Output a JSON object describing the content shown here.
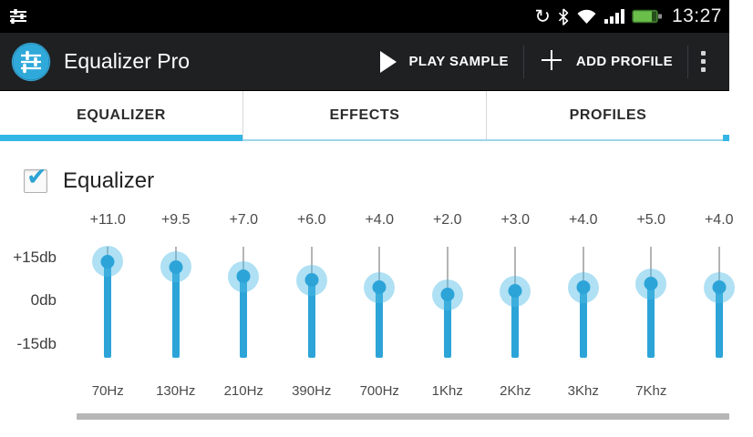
{
  "status_bar": {
    "time": "13:27",
    "icons": [
      "equalizer-notification-icon",
      "sync-icon",
      "bluetooth-icon",
      "wifi-icon",
      "signal-strength-icon",
      "battery-icon"
    ]
  },
  "action_bar": {
    "title": "Equalizer Pro",
    "actions": {
      "play_sample": "PLAY SAMPLE",
      "add_profile": "ADD PROFILE"
    }
  },
  "tabs": [
    {
      "label": "EQUALIZER",
      "active": true
    },
    {
      "label": "EFFECTS",
      "active": false
    },
    {
      "label": "PROFILES",
      "active": false
    }
  ],
  "equalizer": {
    "enabled_checkbox_label": "Equalizer",
    "enabled": true,
    "axis_labels": [
      "+15db",
      "0db",
      "-15db"
    ],
    "range_db": {
      "min": -15,
      "max": 15
    },
    "bands": [
      {
        "freq": "70Hz",
        "gain_label": "+11.0",
        "gain_db": 11.0
      },
      {
        "freq": "130Hz",
        "gain_label": "+9.5",
        "gain_db": 9.5
      },
      {
        "freq": "210Hz",
        "gain_label": "+7.0",
        "gain_db": 7.0
      },
      {
        "freq": "390Hz",
        "gain_label": "+6.0",
        "gain_db": 6.0
      },
      {
        "freq": "700Hz",
        "gain_label": "+4.0",
        "gain_db": 4.0
      },
      {
        "freq": "1Khz",
        "gain_label": "+2.0",
        "gain_db": 2.0
      },
      {
        "freq": "2Khz",
        "gain_label": "+3.0",
        "gain_db": 3.0
      },
      {
        "freq": "3Khz",
        "gain_label": "+4.0",
        "gain_db": 4.0
      },
      {
        "freq": "7Khz",
        "gain_label": "+5.0",
        "gain_db": 5.0
      },
      {
        "freq": "",
        "gain_label": "+4.0",
        "gain_db": 4.0,
        "partially_visible": true
      }
    ]
  },
  "colors": {
    "accent": "#33b5e5",
    "slider_fill": "#2da4d8",
    "action_bar_bg": "#1e2022",
    "battery_green": "#6abf4b"
  }
}
